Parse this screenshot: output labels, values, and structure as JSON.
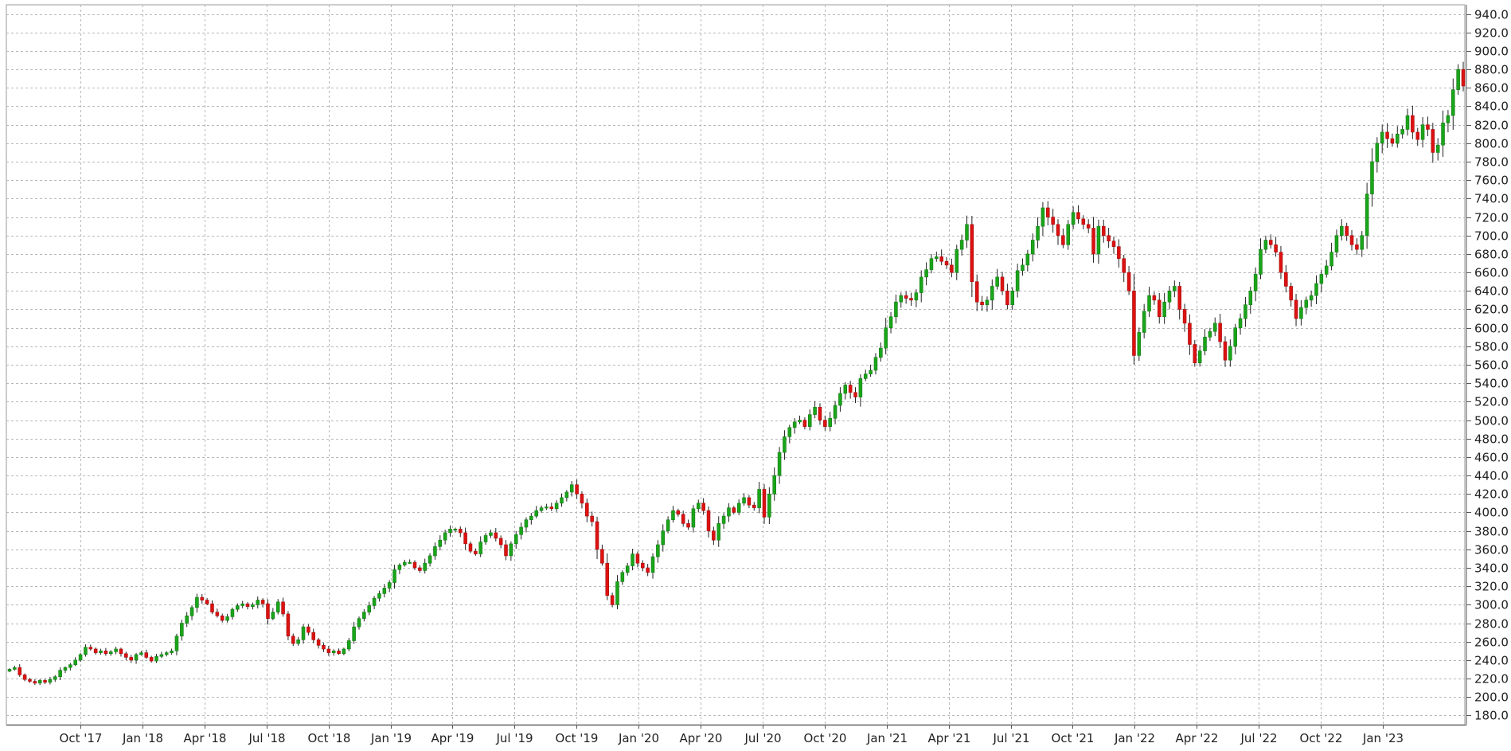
{
  "chart_data": {
    "type": "candlestick",
    "title": "",
    "xlabel": "",
    "ylabel": "",
    "ylim": [
      170,
      950
    ],
    "y_ticks": [
      180,
      200,
      220,
      240,
      260,
      280,
      300,
      320,
      340,
      360,
      380,
      400,
      420,
      440,
      460,
      480,
      500,
      520,
      540,
      560,
      580,
      600,
      620,
      640,
      660,
      680,
      700,
      720,
      740,
      760,
      780,
      800,
      820,
      840,
      860,
      880,
      900,
      920,
      940
    ],
    "x_ticks": [
      "Oct '17",
      "Jan '18",
      "Apr '18",
      "Jul '18",
      "Oct '18",
      "Jan '19",
      "Apr '19",
      "Jul '19",
      "Oct '19",
      "Jan '20",
      "Apr '20",
      "Jul '20",
      "Oct '20",
      "Jan '21",
      "Apr '21",
      "Jul '21",
      "Oct '21",
      "Jan '22",
      "Apr '22",
      "Jul '22",
      "Oct '22",
      "Jan '23"
    ],
    "grid": true,
    "colors": {
      "up": "#1aa51a",
      "down": "#dd1111",
      "grid": "#b8b8b8",
      "wick": "#222222"
    },
    "frequency": "weekly",
    "series": [
      {
        "close": [
          230,
          232,
          224,
          219,
          217,
          215,
          218,
          216,
          219,
          222,
          229,
          232,
          235,
          240,
          246,
          254,
          252,
          248,
          250,
          247,
          249,
          252,
          247,
          243,
          240,
          246,
          248,
          243,
          239,
          244,
          246,
          248,
          250,
          266,
          280,
          288,
          297,
          308,
          305,
          301,
          292,
          288,
          283,
          287,
          295,
          299,
          301,
          298,
          300,
          305,
          301,
          285,
          292,
          303,
          290,
          266,
          258,
          262,
          276,
          270,
          262,
          256,
          252,
          248,
          250,
          247,
          252,
          261,
          276,
          285,
          292,
          299,
          307,
          312,
          318,
          324,
          338,
          343,
          346,
          346,
          340,
          337,
          345,
          353,
          363,
          370,
          378,
          382,
          382,
          378,
          366,
          358,
          355,
          368,
          375,
          378,
          372,
          365,
          353,
          366,
          376,
          384,
          392,
          396,
          402,
          405,
          406,
          404,
          410,
          416,
          422,
          430,
          420,
          410,
          396,
          390,
          360,
          345,
          310,
          300,
          325,
          335,
          342,
          355,
          345,
          340,
          335,
          352,
          365,
          380,
          392,
          402,
          398,
          388,
          384,
          404,
          410,
          402,
          380,
          370,
          388,
          396,
          405,
          400,
          410,
          416,
          408,
          405,
          425,
          395,
          420,
          440,
          465,
          482,
          492,
          498,
          500,
          493,
          506,
          514,
          500,
          493,
          502,
          516,
          529,
          538,
          530,
          525,
          545,
          550,
          554,
          568,
          578,
          600,
          612,
          628,
          635,
          632,
          630,
          638,
          655,
          663,
          675,
          677,
          672,
          668,
          660,
          685,
          695,
          712,
          650,
          628,
          625,
          630,
          645,
          655,
          640,
          625,
          640,
          662,
          668,
          680,
          695,
          710,
          730,
          720,
          712,
          700,
          690,
          712,
          725,
          718,
          712,
          708,
          680,
          710,
          700,
          694,
          688,
          675,
          660,
          640,
          570,
          595,
          618,
          635,
          630,
          612,
          628,
          640,
          645,
          620,
          605,
          582,
          562,
          575,
          590,
          596,
          605,
          585,
          565,
          580,
          600,
          610,
          625,
          640,
          658,
          685,
          695,
          690,
          682,
          660,
          645,
          630,
          610,
          622,
          630,
          635,
          648,
          658,
          667,
          682,
          700,
          710,
          700,
          690,
          685,
          700,
          745,
          780,
          800,
          812,
          805,
          800,
          810,
          815,
          830,
          812,
          804,
          820,
          815,
          790,
          798,
          822,
          830,
          858,
          880,
          862
        ]
      }
    ]
  }
}
